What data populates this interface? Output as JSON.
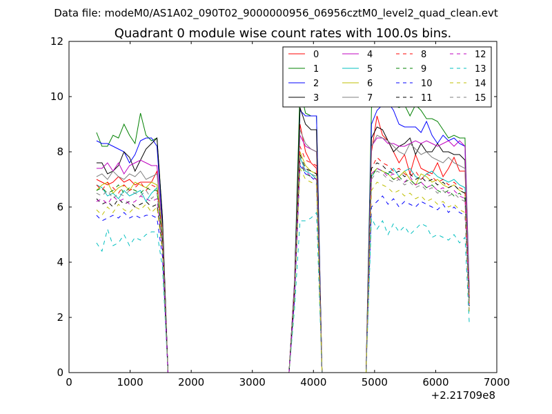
{
  "header": {
    "data_file": "Data file: modeM0/AS1A02_090T02_9000000956_06956cztM0_level2_quad_clean.evt",
    "title": "Quadrant 0 module wise count rates with 100.0s bins."
  },
  "chart_data": {
    "type": "line",
    "title": "Quadrant 0 module wise count rates with 100.0s bins.",
    "xlabel": "",
    "ylabel": "",
    "x_offset_label": "+2.21709e8",
    "xlim": [
      0,
      7000
    ],
    "ylim": [
      0,
      12
    ],
    "xticks": [
      0,
      1000,
      2000,
      3000,
      4000,
      5000,
      6000,
      7000
    ],
    "yticks": [
      0,
      2,
      4,
      6,
      8,
      10,
      12
    ],
    "grid": false,
    "legend": {
      "placement": "top-right",
      "columns": 4
    },
    "x": [
      450,
      540,
      630,
      720,
      810,
      900,
      990,
      1080,
      1170,
      1260,
      1350,
      1440,
      1530,
      1620,
      1710,
      1800,
      1890,
      1980,
      2070,
      2160,
      2250,
      2340,
      2430,
      2520,
      2610,
      2700,
      2790,
      2880,
      2970,
      3060,
      3150,
      3240,
      3330,
      3420,
      3510,
      3600,
      3690,
      3780,
      3870,
      3960,
      4050,
      4140,
      4230,
      4320,
      4410,
      4500,
      4590,
      4680,
      4770,
      4860,
      4950,
      5040,
      5130,
      5220,
      5310,
      5400,
      5490,
      5580,
      5670,
      5760,
      5850,
      5940,
      6030,
      6120,
      6210,
      6300,
      6390,
      6480,
      6550
    ],
    "series": [
      {
        "name": "0",
        "color": "#ff0000",
        "dash": "solid",
        "values": [
          7.0,
          6.9,
          6.8,
          6.9,
          7.1,
          6.9,
          7.0,
          6.8,
          6.9,
          6.9,
          6.9,
          7.3,
          5.2,
          0,
          0,
          0,
          0,
          0,
          0,
          0,
          0,
          0,
          0,
          0,
          0,
          0,
          0,
          0,
          0,
          0,
          0,
          0,
          0,
          0,
          0,
          0,
          3.0,
          9.0,
          8.0,
          7.6,
          7.4,
          0,
          0,
          0,
          0,
          0,
          0,
          0,
          0,
          0,
          8.0,
          9.3,
          8.6,
          8.4,
          8.0,
          7.6,
          7.9,
          7.2,
          7.9,
          7.4,
          7.3,
          7.2,
          7.6,
          7.1,
          7.4,
          7.8,
          7.3,
          7.3,
          2.8
        ]
      },
      {
        "name": "1",
        "color": "#008000",
        "dash": "solid",
        "values": [
          8.7,
          8.2,
          8.2,
          8.6,
          8.5,
          9.0,
          8.6,
          8.3,
          9.4,
          8.6,
          8.4,
          8.5,
          5.6,
          0,
          0,
          0,
          0,
          0,
          0,
          0,
          0,
          0,
          0,
          0,
          0,
          0,
          0,
          0,
          0,
          0,
          0,
          0,
          0,
          0,
          0,
          0,
          3.3,
          10.3,
          9.4,
          9.3,
          9.3,
          0,
          0,
          0,
          0,
          0,
          0,
          0,
          0,
          0,
          9.6,
          9.9,
          10.0,
          9.9,
          9.7,
          9.6,
          9.7,
          9.3,
          9.7,
          9.5,
          9.2,
          9.2,
          9.1,
          8.8,
          8.5,
          8.6,
          8.5,
          8.5,
          3.0
        ]
      },
      {
        "name": "2",
        "color": "#0000ff",
        "dash": "solid",
        "values": [
          8.4,
          8.3,
          8.3,
          8.2,
          8.1,
          8.0,
          7.6,
          7.9,
          8.4,
          8.5,
          8.5,
          8.2,
          5.4,
          0,
          0,
          0,
          0,
          0,
          0,
          0,
          0,
          0,
          0,
          0,
          0,
          0,
          0,
          0,
          0,
          0,
          0,
          0,
          0,
          0,
          0,
          0,
          3.2,
          9.5,
          9.3,
          9.3,
          9.3,
          0,
          0,
          0,
          0,
          0,
          0,
          0,
          0,
          0,
          9.0,
          9.5,
          9.7,
          9.8,
          9.5,
          9.0,
          8.9,
          8.9,
          8.9,
          8.7,
          9.1,
          8.6,
          8.3,
          8.6,
          8.4,
          8.5,
          8.3,
          8.2,
          2.9
        ]
      },
      {
        "name": "3",
        "color": "#000000",
        "dash": "solid",
        "values": [
          7.6,
          7.6,
          7.2,
          7.3,
          7.5,
          8.0,
          7.8,
          7.3,
          7.7,
          8.1,
          8.3,
          8.5,
          5.6,
          0,
          0,
          0,
          0,
          0,
          0,
          0,
          0,
          0,
          0,
          0,
          0,
          0,
          0,
          0,
          0,
          0,
          0,
          0,
          0,
          0,
          0,
          0,
          3.2,
          9.6,
          9.0,
          8.8,
          8.8,
          0,
          0,
          0,
          0,
          0,
          0,
          0,
          0,
          0,
          8.5,
          8.9,
          8.8,
          8.4,
          8.0,
          8.2,
          8.3,
          8.5,
          7.9,
          8.3,
          8.0,
          8.0,
          8.3,
          8.0,
          8.0,
          7.9,
          7.9,
          7.7,
          2.7
        ]
      },
      {
        "name": "4",
        "color": "#bf00bf",
        "dash": "solid",
        "values": [
          7.4,
          7.4,
          7.6,
          7.3,
          7.6,
          7.2,
          7.5,
          7.6,
          7.7,
          7.6,
          7.5,
          7.5,
          5.2,
          0,
          0,
          0,
          0,
          0,
          0,
          0,
          0,
          0,
          0,
          0,
          0,
          0,
          0,
          0,
          0,
          0,
          0,
          0,
          0,
          0,
          0,
          0,
          3.2,
          8.6,
          8.2,
          8.1,
          8.0,
          0,
          0,
          0,
          0,
          0,
          0,
          0,
          0,
          0,
          8.2,
          8.5,
          8.5,
          8.3,
          8.3,
          8.2,
          8.2,
          8.3,
          8.4,
          8.3,
          8.4,
          8.3,
          8.2,
          8.3,
          8.4,
          8.2,
          8.4,
          8.2,
          2.9
        ]
      },
      {
        "name": "5",
        "color": "#00bfbf",
        "dash": "solid",
        "values": [
          6.8,
          6.7,
          6.4,
          6.5,
          6.3,
          6.6,
          6.4,
          6.5,
          6.6,
          6.2,
          6.5,
          6.7,
          4.8,
          0,
          0,
          0,
          0,
          0,
          0,
          0,
          0,
          0,
          0,
          0,
          0,
          0,
          0,
          0,
          0,
          0,
          0,
          0,
          0,
          0,
          0,
          0,
          2.9,
          7.8,
          7.3,
          7.2,
          7.0,
          0,
          0,
          0,
          0,
          0,
          0,
          0,
          0,
          0,
          7.1,
          7.4,
          7.3,
          7.2,
          7.4,
          7.1,
          7.3,
          7.4,
          7.1,
          7.0,
          7.2,
          7.3,
          7.1,
          7.0,
          6.9,
          7.0,
          6.8,
          6.7,
          2.4
        ]
      },
      {
        "name": "6",
        "color": "#bfbf00",
        "dash": "solid",
        "values": [
          6.6,
          6.8,
          6.9,
          6.5,
          6.7,
          6.8,
          6.6,
          6.9,
          6.8,
          6.7,
          6.9,
          6.8,
          5.0,
          0,
          0,
          0,
          0,
          0,
          0,
          0,
          0,
          0,
          0,
          0,
          0,
          0,
          0,
          0,
          0,
          0,
          0,
          0,
          0,
          0,
          0,
          0,
          3.0,
          8.0,
          7.5,
          7.3,
          7.2,
          0,
          0,
          0,
          0,
          0,
          0,
          0,
          0,
          0,
          7.2,
          7.4,
          7.3,
          7.2,
          7.0,
          7.1,
          7.3,
          7.0,
          6.8,
          7.2,
          7.1,
          6.9,
          7.0,
          6.8,
          6.7,
          6.8,
          6.6,
          6.5,
          2.5
        ]
      },
      {
        "name": "7",
        "color": "#7f7f7f",
        "dash": "solid",
        "values": [
          7.1,
          7.2,
          7.0,
          7.3,
          7.1,
          7.0,
          7.2,
          7.1,
          7.3,
          7.0,
          7.1,
          7.2,
          5.2,
          0,
          0,
          0,
          0,
          0,
          0,
          0,
          0,
          0,
          0,
          0,
          0,
          0,
          0,
          0,
          0,
          0,
          0,
          0,
          0,
          0,
          0,
          0,
          3.1,
          8.8,
          8.3,
          8.1,
          8.0,
          0,
          0,
          0,
          0,
          0,
          0,
          0,
          0,
          0,
          8.2,
          8.6,
          8.5,
          8.4,
          8.2,
          8.0,
          7.9,
          8.3,
          8.1,
          7.9,
          8.0,
          7.8,
          7.7,
          7.6,
          7.8,
          7.6,
          7.5,
          7.4,
          2.8
        ]
      },
      {
        "name": "8",
        "color": "#ff0000",
        "dash": "dashed",
        "values": [
          6.8,
          6.6,
          6.9,
          6.7,
          6.5,
          6.8,
          6.6,
          6.7,
          6.9,
          6.6,
          6.8,
          6.7,
          4.9,
          0,
          0,
          0,
          0,
          0,
          0,
          0,
          0,
          0,
          0,
          0,
          0,
          0,
          0,
          0,
          0,
          0,
          0,
          0,
          0,
          0,
          0,
          0,
          3.0,
          8.2,
          7.7,
          7.6,
          7.5,
          0,
          0,
          0,
          0,
          0,
          0,
          0,
          0,
          0,
          7.4,
          7.8,
          7.6,
          7.5,
          7.3,
          7.4,
          7.2,
          7.1,
          7.3,
          7.0,
          7.2,
          7.1,
          6.9,
          7.0,
          6.8,
          6.9,
          6.7,
          6.6,
          2.5
        ]
      },
      {
        "name": "9",
        "color": "#008000",
        "dash": "dashed",
        "values": [
          6.6,
          6.7,
          6.5,
          6.6,
          6.8,
          6.5,
          6.7,
          6.6,
          6.5,
          6.7,
          6.6,
          6.6,
          4.8,
          0,
          0,
          0,
          0,
          0,
          0,
          0,
          0,
          0,
          0,
          0,
          0,
          0,
          0,
          0,
          0,
          0,
          0,
          0,
          0,
          0,
          0,
          0,
          2.9,
          7.6,
          7.2,
          7.1,
          7.0,
          0,
          0,
          0,
          0,
          0,
          0,
          0,
          0,
          0,
          7.1,
          7.4,
          7.3,
          7.2,
          7.0,
          7.1,
          6.9,
          7.0,
          6.8,
          6.9,
          6.7,
          6.8,
          6.6,
          6.5,
          6.6,
          6.4,
          6.5,
          6.3,
          2.4
        ]
      },
      {
        "name": "10",
        "color": "#0000ff",
        "dash": "dashed",
        "values": [
          5.7,
          5.5,
          5.6,
          5.7,
          5.6,
          5.8,
          5.6,
          5.7,
          5.6,
          5.7,
          5.7,
          5.6,
          4.2,
          0,
          0,
          0,
          0,
          0,
          0,
          0,
          0,
          0,
          0,
          0,
          0,
          0,
          0,
          0,
          0,
          0,
          0,
          0,
          0,
          0,
          0,
          0,
          2.6,
          7.5,
          7.2,
          7.1,
          6.9,
          0,
          0,
          0,
          0,
          0,
          0,
          0,
          0,
          0,
          6.0,
          6.2,
          6.4,
          6.1,
          6.3,
          6.0,
          6.2,
          6.1,
          6.0,
          6.2,
          6.1,
          6.0,
          5.9,
          6.1,
          5.8,
          6.0,
          5.8,
          5.7,
          2.1
        ]
      },
      {
        "name": "11",
        "color": "#000000",
        "dash": "dashed",
        "values": [
          6.3,
          6.1,
          6.2,
          6.0,
          6.3,
          6.1,
          6.2,
          6.0,
          6.1,
          6.2,
          6.0,
          6.1,
          4.5,
          0,
          0,
          0,
          0,
          0,
          0,
          0,
          0,
          0,
          0,
          0,
          0,
          0,
          0,
          0,
          0,
          0,
          0,
          0,
          0,
          0,
          0,
          0,
          2.8,
          7.9,
          7.4,
          7.3,
          7.2,
          0,
          0,
          0,
          0,
          0,
          0,
          0,
          0,
          0,
          7.4,
          7.6,
          7.5,
          7.3,
          7.2,
          7.3,
          7.1,
          7.2,
          7.0,
          7.1,
          6.9,
          7.0,
          6.8,
          6.9,
          6.7,
          6.8,
          6.6,
          6.5,
          2.4
        ]
      },
      {
        "name": "12",
        "color": "#bf00bf",
        "dash": "dashed",
        "values": [
          6.2,
          6.3,
          6.1,
          6.4,
          6.2,
          6.3,
          6.1,
          6.2,
          6.4,
          6.3,
          6.2,
          6.3,
          4.6,
          0,
          0,
          0,
          0,
          0,
          0,
          0,
          0,
          0,
          0,
          0,
          0,
          0,
          0,
          0,
          0,
          0,
          0,
          0,
          0,
          0,
          0,
          0,
          2.8,
          7.6,
          7.3,
          7.1,
          7.0,
          0,
          0,
          0,
          0,
          0,
          0,
          0,
          0,
          0,
          7.2,
          7.4,
          7.3,
          7.1,
          7.2,
          7.0,
          6.9,
          7.1,
          6.8,
          6.9,
          6.7,
          6.8,
          6.6,
          6.7,
          6.5,
          6.6,
          6.4,
          6.3,
          2.3
        ]
      },
      {
        "name": "13",
        "color": "#00bfbf",
        "dash": "dashed",
        "values": [
          4.7,
          4.4,
          5.2,
          4.6,
          4.7,
          5.0,
          4.6,
          4.9,
          4.8,
          5.0,
          5.1,
          5.1,
          3.8,
          0,
          0,
          0,
          0,
          0,
          0,
          0,
          0,
          0,
          0,
          0,
          0,
          0,
          0,
          0,
          0,
          0,
          0,
          0,
          0,
          0,
          0,
          0,
          2.3,
          5.5,
          5.5,
          5.6,
          5.8,
          0,
          0,
          0,
          0,
          0,
          0,
          0,
          0,
          0,
          5.6,
          5.2,
          5.5,
          5.0,
          5.4,
          5.1,
          5.3,
          5.0,
          5.2,
          5.4,
          5.3,
          4.9,
          5.0,
          4.9,
          4.8,
          5.0,
          4.7,
          4.9,
          1.8
        ]
      },
      {
        "name": "14",
        "color": "#bfbf00",
        "dash": "dashed",
        "values": [
          5.9,
          5.7,
          6.0,
          5.8,
          6.1,
          5.9,
          5.8,
          6.0,
          5.9,
          6.1,
          5.8,
          6.0,
          4.4,
          0,
          0,
          0,
          0,
          0,
          0,
          0,
          0,
          0,
          0,
          0,
          0,
          0,
          0,
          0,
          0,
          0,
          0,
          0,
          0,
          0,
          0,
          0,
          2.7,
          7.4,
          7.0,
          6.9,
          6.8,
          0,
          0,
          0,
          0,
          0,
          0,
          0,
          0,
          0,
          6.6,
          6.9,
          6.8,
          6.7,
          6.5,
          6.6,
          6.4,
          6.5,
          6.3,
          6.4,
          6.2,
          6.3,
          6.1,
          6.2,
          6.0,
          6.1,
          5.9,
          5.8,
          2.2
        ]
      },
      {
        "name": "15",
        "color": "#7f7f7f",
        "dash": "dashed",
        "values": [
          6.5,
          6.4,
          6.6,
          6.3,
          6.5,
          6.4,
          6.6,
          6.5,
          6.4,
          6.6,
          6.3,
          6.5,
          4.7,
          0,
          0,
          0,
          0,
          0,
          0,
          0,
          0,
          0,
          0,
          0,
          0,
          0,
          0,
          0,
          0,
          0,
          0,
          0,
          0,
          0,
          0,
          0,
          2.9,
          7.8,
          7.4,
          7.2,
          7.1,
          0,
          0,
          0,
          0,
          0,
          0,
          0,
          0,
          0,
          7.0,
          7.3,
          7.2,
          7.0,
          6.9,
          7.0,
          6.8,
          6.9,
          6.7,
          6.8,
          6.6,
          6.7,
          6.5,
          6.6,
          6.4,
          6.5,
          6.3,
          6.2,
          2.4
        ]
      }
    ]
  }
}
